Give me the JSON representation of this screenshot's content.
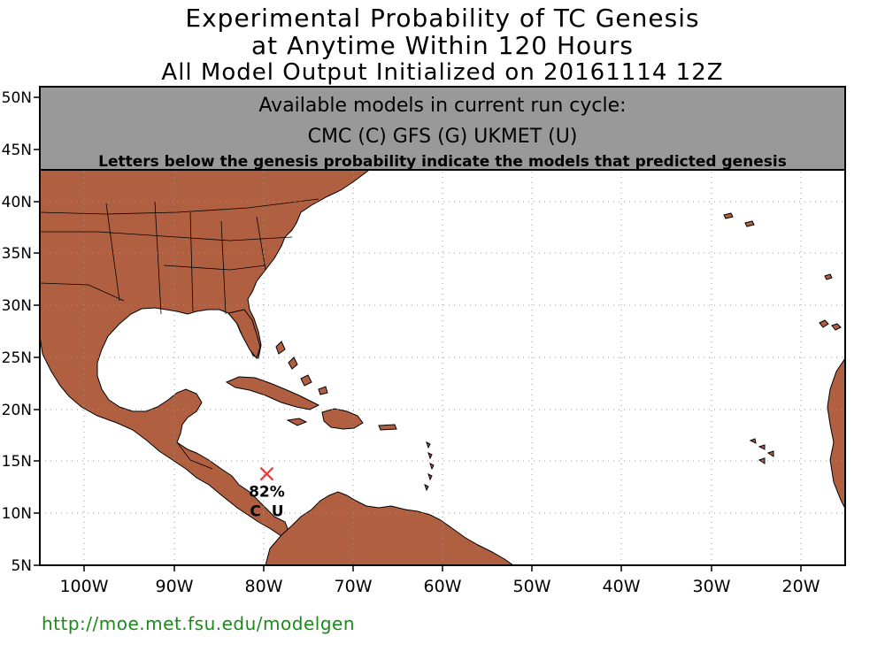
{
  "title": {
    "line1": "Experimental Probability of TC Genesis",
    "line2": "at Anytime Within 120 Hours",
    "line3": "All Model Output Initialized on 20161114 12Z"
  },
  "info_box": {
    "heading": "Available models in current run cycle:",
    "models": "CMC (C) GFS (G)  UKMET (U)",
    "note": "Letters below the genesis probability indicate the models that predicted genesis"
  },
  "axes": {
    "lat_labels": [
      "50N",
      "45N",
      "40N",
      "35N",
      "30N",
      "25N",
      "20N",
      "15N",
      "10N",
      "5N"
    ],
    "lon_labels": [
      "100W",
      "90W",
      "80W",
      "70W",
      "60W",
      "50W",
      "40W",
      "30W",
      "20W"
    ]
  },
  "genesis_point": {
    "lat": 13.8,
    "lon": -79.6,
    "probability": "82%",
    "models": "C  U",
    "marker_color": "#ff3333"
  },
  "colors": {
    "land": "#b06040",
    "ocean": "#ffffff",
    "box_fill": "#999999",
    "url": "#1a8a1a"
  },
  "footer": {
    "url": "http://moe.met.fsu.edu/modelgen"
  }
}
